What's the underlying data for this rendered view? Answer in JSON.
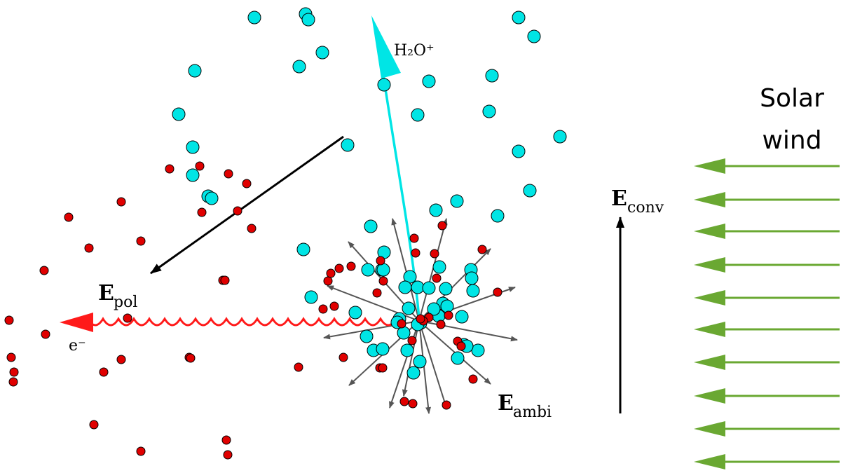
{
  "labels": {
    "ion": "H₂O⁺",
    "electron": "e⁻",
    "e_pol_main": "E",
    "e_pol_sub": "pol",
    "e_ambi_main": "E",
    "e_ambi_sub": "ambi",
    "e_conv_main": "E",
    "e_conv_sub": "conv",
    "solar_wind_line1": "Solar",
    "solar_wind_line2": "wind"
  },
  "colors": {
    "ion": "#00e5e5",
    "electron": "#e00000",
    "solar_wind": "#6aa832",
    "radial_arrows": "#555555",
    "ion_trajectory": "#00e5e5",
    "electron_wave": "#ff1a1a"
  }
}
